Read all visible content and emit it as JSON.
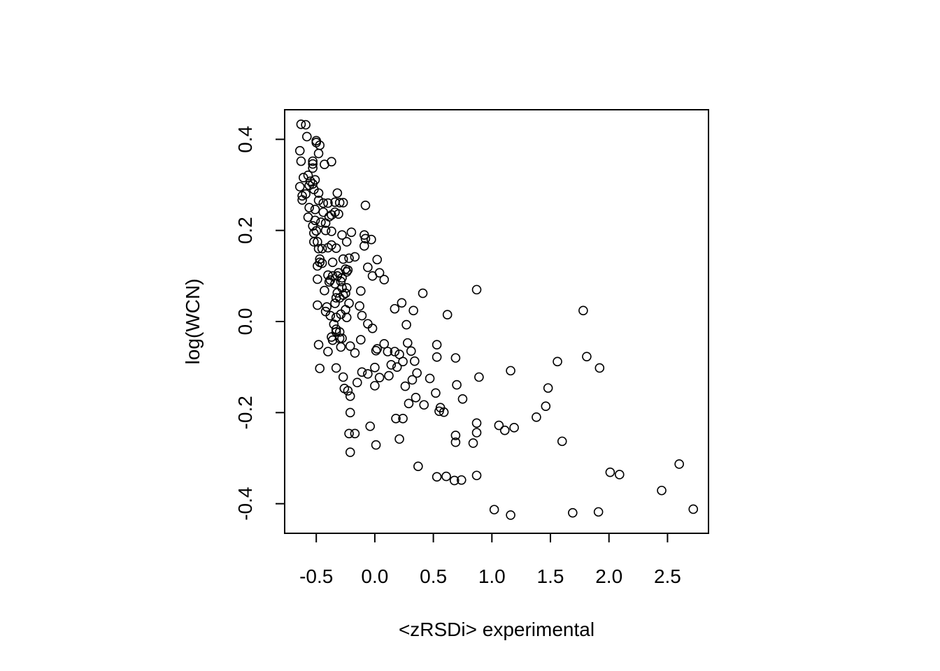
{
  "chart_data": {
    "type": "scatter",
    "title": "",
    "xlabel": "<zRSDi> experimental",
    "ylabel": "log(WCN)",
    "xlim": [
      -0.77,
      2.85
    ],
    "ylim": [
      -0.465,
      0.465
    ],
    "xticks": [
      "-0.5",
      "0.0",
      "0.5",
      "1.0",
      "1.5",
      "2.0",
      "2.5"
    ],
    "xtick_values": [
      -0.5,
      0.0,
      0.5,
      1.0,
      1.5,
      2.0,
      2.5
    ],
    "yticks": [
      "-0.4",
      "-0.2",
      "0.0",
      "0.2",
      "0.4"
    ],
    "ytick_values": [
      -0.4,
      -0.2,
      0.0,
      0.2,
      0.4
    ],
    "grid": false,
    "legend": "none",
    "marker": "open-circle",
    "points": [
      [
        -0.63,
        0.433
      ],
      [
        -0.59,
        0.432
      ],
      [
        -0.58,
        0.406
      ],
      [
        -0.64,
        0.375
      ],
      [
        -0.63,
        0.352
      ],
      [
        -0.53,
        0.352
      ],
      [
        -0.53,
        0.346
      ],
      [
        -0.53,
        0.337
      ],
      [
        -0.57,
        0.321
      ],
      [
        -0.61,
        0.316
      ],
      [
        -0.55,
        0.308
      ],
      [
        -0.51,
        0.311
      ],
      [
        -0.53,
        0.302
      ],
      [
        -0.56,
        0.299
      ],
      [
        -0.64,
        0.296
      ],
      [
        -0.59,
        0.28
      ],
      [
        -0.62,
        0.276
      ],
      [
        -0.62,
        0.267
      ],
      [
        -0.56,
        0.25
      ],
      [
        -0.52,
        0.29
      ],
      [
        -0.48,
        0.282
      ],
      [
        -0.5,
        0.397
      ],
      [
        -0.47,
        0.387
      ],
      [
        -0.5,
        0.393
      ],
      [
        -0.48,
        0.369
      ],
      [
        -0.43,
        0.345
      ],
      [
        -0.37,
        0.351
      ],
      [
        -0.32,
        0.282
      ],
      [
        -0.48,
        0.266
      ],
      [
        -0.44,
        0.26
      ],
      [
        -0.4,
        0.26
      ],
      [
        -0.34,
        0.262
      ],
      [
        -0.3,
        0.261
      ],
      [
        -0.27,
        0.261
      ],
      [
        -0.34,
        0.24
      ],
      [
        -0.37,
        0.234
      ],
      [
        -0.31,
        0.236
      ],
      [
        -0.44,
        0.24
      ],
      [
        -0.51,
        0.246
      ],
      [
        -0.57,
        0.229
      ],
      [
        -0.51,
        0.222
      ],
      [
        -0.53,
        0.21
      ],
      [
        -0.5,
        0.199
      ],
      [
        -0.52,
        0.194
      ],
      [
        -0.42,
        0.2
      ],
      [
        -0.37,
        0.198
      ],
      [
        -0.46,
        0.218
      ],
      [
        -0.42,
        0.216
      ],
      [
        -0.39,
        0.23
      ],
      [
        -0.28,
        0.19
      ],
      [
        -0.2,
        0.196
      ],
      [
        -0.52,
        0.175
      ],
      [
        -0.49,
        0.175
      ],
      [
        -0.48,
        0.16
      ],
      [
        -0.45,
        0.16
      ],
      [
        -0.4,
        0.162
      ],
      [
        -0.37,
        0.168
      ],
      [
        -0.33,
        0.161
      ],
      [
        -0.24,
        0.175
      ],
      [
        -0.47,
        0.137
      ],
      [
        -0.47,
        0.13
      ],
      [
        -0.49,
        0.122
      ],
      [
        -0.45,
        0.128
      ],
      [
        -0.36,
        0.13
      ],
      [
        -0.27,
        0.137
      ],
      [
        -0.22,
        0.139
      ],
      [
        -0.17,
        0.142
      ],
      [
        -0.31,
        0.107
      ],
      [
        -0.24,
        0.109
      ],
      [
        -0.25,
        0.115
      ],
      [
        -0.23,
        0.113
      ],
      [
        -0.28,
        0.096
      ],
      [
        -0.32,
        0.1
      ],
      [
        -0.36,
        0.1
      ],
      [
        -0.38,
        0.091
      ],
      [
        -0.4,
        0.102
      ],
      [
        -0.39,
        0.087
      ],
      [
        -0.49,
        0.093
      ],
      [
        -0.43,
        0.068
      ],
      [
        -0.32,
        0.063
      ],
      [
        -0.28,
        0.074
      ],
      [
        -0.24,
        0.074
      ],
      [
        -0.29,
        0.088
      ],
      [
        -0.34,
        0.083
      ],
      [
        -0.3,
        0.052
      ],
      [
        -0.27,
        0.058
      ],
      [
        -0.25,
        0.062
      ],
      [
        -0.33,
        0.052
      ],
      [
        -0.12,
        0.067
      ],
      [
        -0.22,
        0.04
      ],
      [
        -0.13,
        0.034
      ],
      [
        -0.34,
        0.04
      ],
      [
        -0.41,
        0.032
      ],
      [
        -0.42,
        0.022
      ],
      [
        -0.38,
        0.013
      ],
      [
        -0.33,
        0.009
      ],
      [
        -0.29,
        0.016
      ],
      [
        -0.25,
        0.026
      ],
      [
        -0.24,
        0.009
      ],
      [
        -0.49,
        0.036
      ],
      [
        -0.11,
        0.013
      ],
      [
        -0.35,
        -0.006
      ],
      [
        -0.33,
        -0.017
      ],
      [
        -0.33,
        -0.023
      ],
      [
        -0.3,
        -0.023
      ],
      [
        -0.37,
        -0.034
      ],
      [
        -0.36,
        -0.041
      ],
      [
        -0.3,
        -0.037
      ],
      [
        -0.28,
        -0.037
      ],
      [
        -0.06,
        -0.005
      ],
      [
        -0.02,
        -0.015
      ],
      [
        -0.48,
        -0.051
      ],
      [
        -0.4,
        -0.066
      ],
      [
        -0.29,
        -0.056
      ],
      [
        -0.21,
        -0.054
      ],
      [
        -0.17,
        -0.069
      ],
      [
        -0.12,
        -0.04
      ],
      [
        -0.33,
        -0.102
      ],
      [
        -0.47,
        -0.103
      ],
      [
        -0.27,
        -0.122
      ],
      [
        -0.26,
        -0.147
      ],
      [
        -0.23,
        -0.152
      ],
      [
        -0.21,
        -0.164
      ],
      [
        -0.15,
        -0.134
      ],
      [
        -0.11,
        -0.111
      ],
      [
        -0.06,
        -0.115
      ],
      [
        -0.21,
        -0.2
      ],
      [
        -0.22,
        -0.246
      ],
      [
        -0.17,
        -0.246
      ],
      [
        -0.21,
        -0.287
      ],
      [
        -0.04,
        -0.23
      ],
      [
        0.01,
        -0.271
      ],
      [
        0.21,
        -0.258
      ],
      [
        -0.08,
        0.255
      ],
      [
        -0.09,
        0.19
      ],
      [
        -0.08,
        0.182
      ],
      [
        -0.03,
        0.18
      ],
      [
        -0.09,
        0.166
      ],
      [
        0.02,
        0.136
      ],
      [
        -0.06,
        0.119
      ],
      [
        0.04,
        0.107
      ],
      [
        -0.02,
        0.1
      ],
      [
        0.08,
        0.092
      ],
      [
        0.41,
        0.062
      ],
      [
        0.87,
        0.07
      ],
      [
        0.17,
        0.028
      ],
      [
        0.23,
        0.041
      ],
      [
        0.33,
        0.024
      ],
      [
        0.62,
        0.015
      ],
      [
        1.78,
        0.024
      ],
      [
        0.27,
        -0.007
      ],
      [
        0.01,
        -0.064
      ],
      [
        0.02,
        -0.06
      ],
      [
        0.08,
        -0.049
      ],
      [
        0.11,
        -0.066
      ],
      [
        0.17,
        -0.066
      ],
      [
        0.21,
        -0.072
      ],
      [
        0.19,
        -0.1
      ],
      [
        0.24,
        -0.088
      ],
      [
        0.28,
        -0.047
      ],
      [
        0.31,
        -0.065
      ],
      [
        0.34,
        -0.087
      ],
      [
        0.53,
        -0.051
      ],
      [
        0.53,
        -0.078
      ],
      [
        0.69,
        -0.08
      ],
      [
        1.16,
        -0.108
      ],
      [
        1.56,
        -0.088
      ],
      [
        1.81,
        -0.077
      ],
      [
        1.92,
        -0.102
      ],
      [
        0.14,
        -0.095
      ],
      [
        0.04,
        -0.123
      ],
      [
        0.12,
        -0.119
      ],
      [
        0.0,
        -0.101
      ],
      [
        0.0,
        -0.141
      ],
      [
        0.36,
        -0.113
      ],
      [
        0.32,
        -0.128
      ],
      [
        0.47,
        -0.125
      ],
      [
        0.26,
        -0.142
      ],
      [
        0.7,
        -0.139
      ],
      [
        0.89,
        -0.122
      ],
      [
        0.35,
        -0.167
      ],
      [
        0.52,
        -0.157
      ],
      [
        0.29,
        -0.18
      ],
      [
        0.42,
        -0.183
      ],
      [
        0.56,
        -0.189
      ],
      [
        0.55,
        -0.197
      ],
      [
        0.59,
        -0.199
      ],
      [
        0.75,
        -0.17
      ],
      [
        1.48,
        -0.146
      ],
      [
        1.46,
        -0.186
      ],
      [
        0.18,
        -0.213
      ],
      [
        0.24,
        -0.213
      ],
      [
        0.87,
        -0.223
      ],
      [
        1.06,
        -0.228
      ],
      [
        1.11,
        -0.239
      ],
      [
        1.19,
        -0.233
      ],
      [
        1.38,
        -0.21
      ],
      [
        0.69,
        -0.25
      ],
      [
        0.87,
        -0.244
      ],
      [
        0.69,
        -0.265
      ],
      [
        0.84,
        -0.267
      ],
      [
        1.6,
        -0.263
      ],
      [
        0.37,
        -0.318
      ],
      [
        0.53,
        -0.341
      ],
      [
        0.61,
        -0.34
      ],
      [
        0.68,
        -0.349
      ],
      [
        0.74,
        -0.348
      ],
      [
        0.87,
        -0.338
      ],
      [
        2.01,
        -0.331
      ],
      [
        2.09,
        -0.336
      ],
      [
        2.6,
        -0.313
      ],
      [
        2.45,
        -0.371
      ],
      [
        1.02,
        -0.413
      ],
      [
        1.16,
        -0.425
      ],
      [
        1.69,
        -0.42
      ],
      [
        1.91,
        -0.418
      ],
      [
        2.72,
        -0.412
      ]
    ]
  }
}
